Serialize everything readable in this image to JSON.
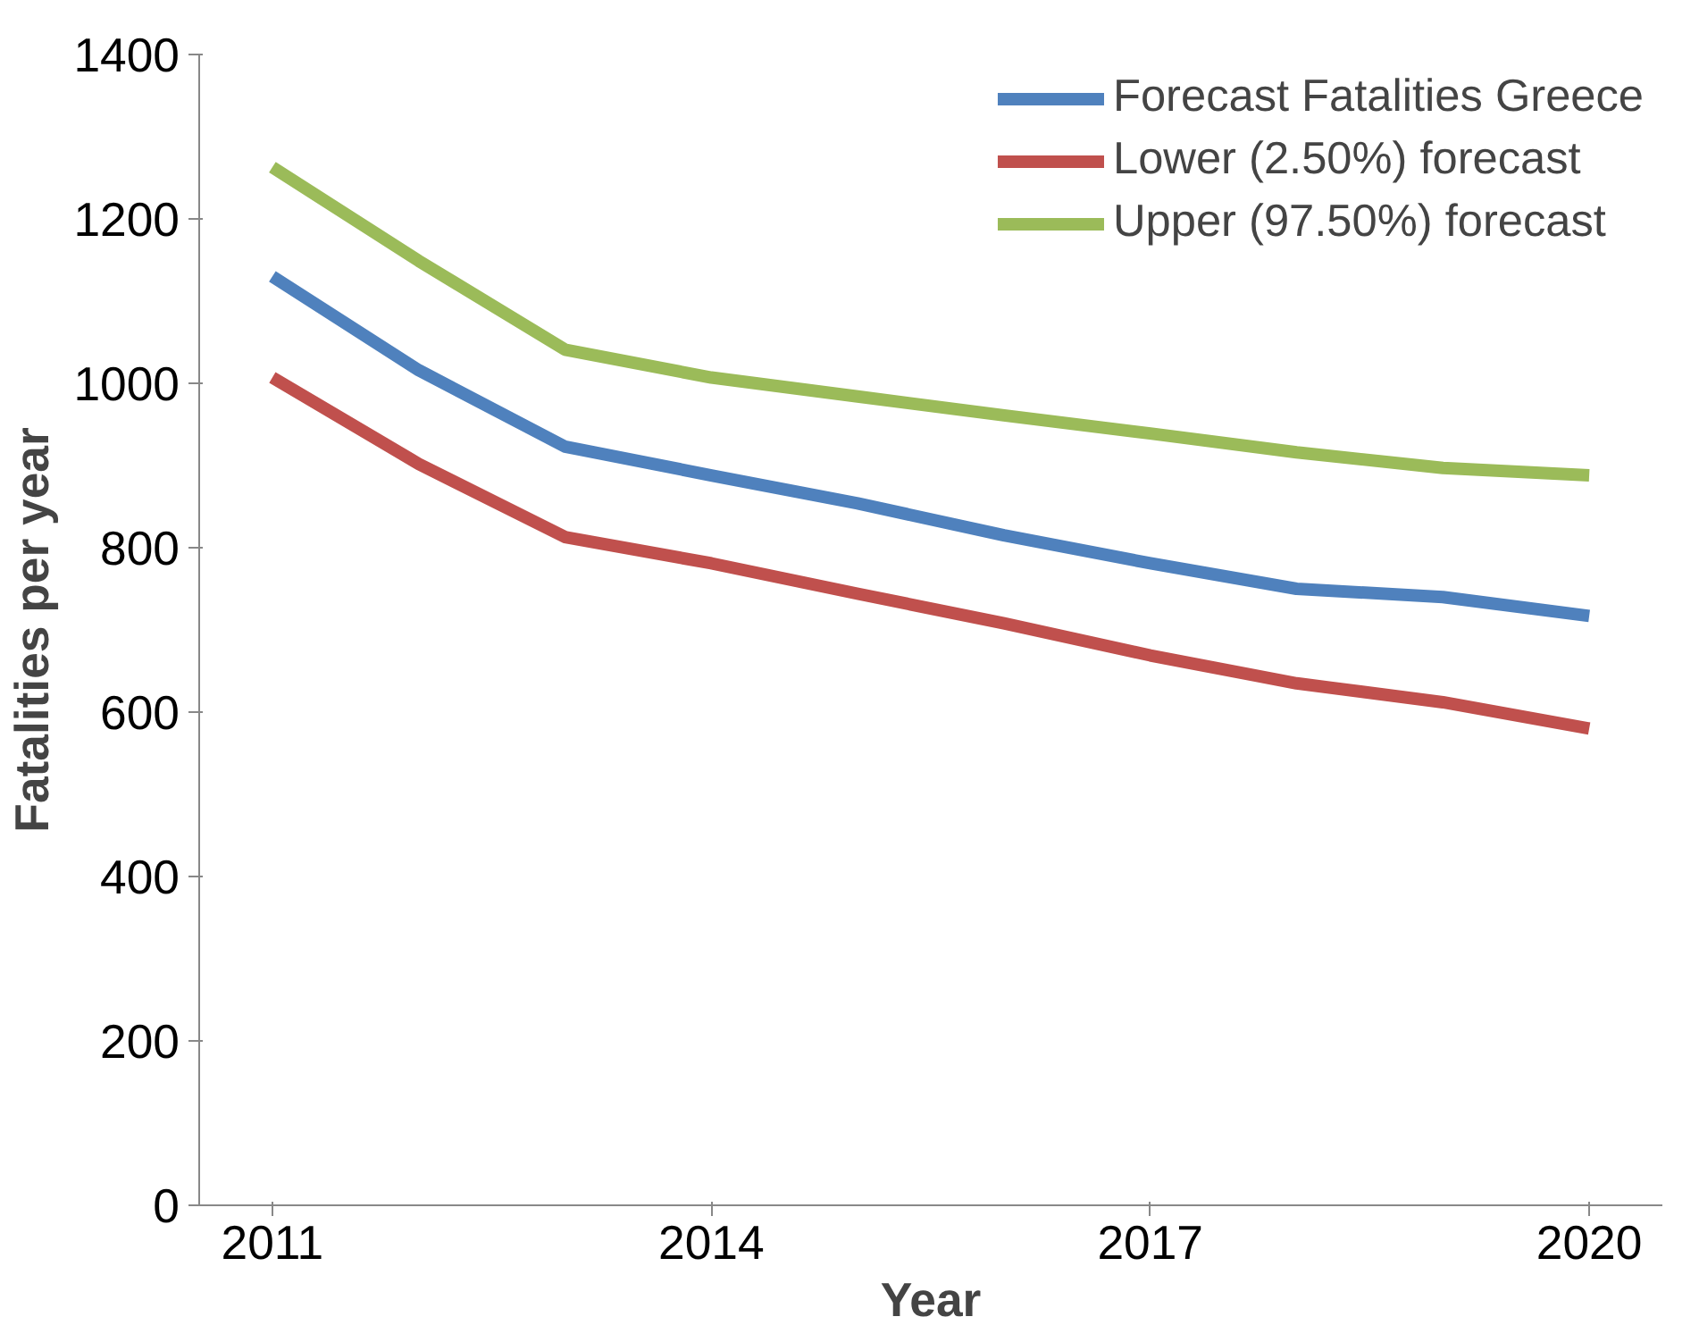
{
  "chart_data": {
    "type": "line",
    "xlabel": "Year",
    "ylabel": "Fatalities per year",
    "categories": [
      "2011",
      null,
      null,
      "2014",
      null,
      null,
      "2017",
      null,
      null,
      "2020"
    ],
    "series": [
      {
        "name": "Forecast Fatalities Greece",
        "color": "#4f81bd",
        "values": [
          1130,
          1016,
          923,
          888,
          854,
          815,
          781,
          750,
          740,
          717
        ]
      },
      {
        "name": "Lower (2.50%) forecast",
        "color": "#c0504d",
        "values": [
          1007,
          902,
          813,
          781,
          744,
          708,
          669,
          635,
          612,
          580
        ]
      },
      {
        "name": "Upper (97.50%) forecast",
        "color": "#9bbb59",
        "values": [
          1263,
          1149,
          1041,
          1007,
          984,
          961,
          939,
          916,
          897,
          888
        ]
      }
    ],
    "ylim": [
      0,
      1400
    ],
    "yticks": [
      0,
      200,
      400,
      600,
      800,
      1000,
      1200,
      1400
    ],
    "legend": "top right",
    "grid": false,
    "marker": "none",
    "line_style": "solid"
  }
}
